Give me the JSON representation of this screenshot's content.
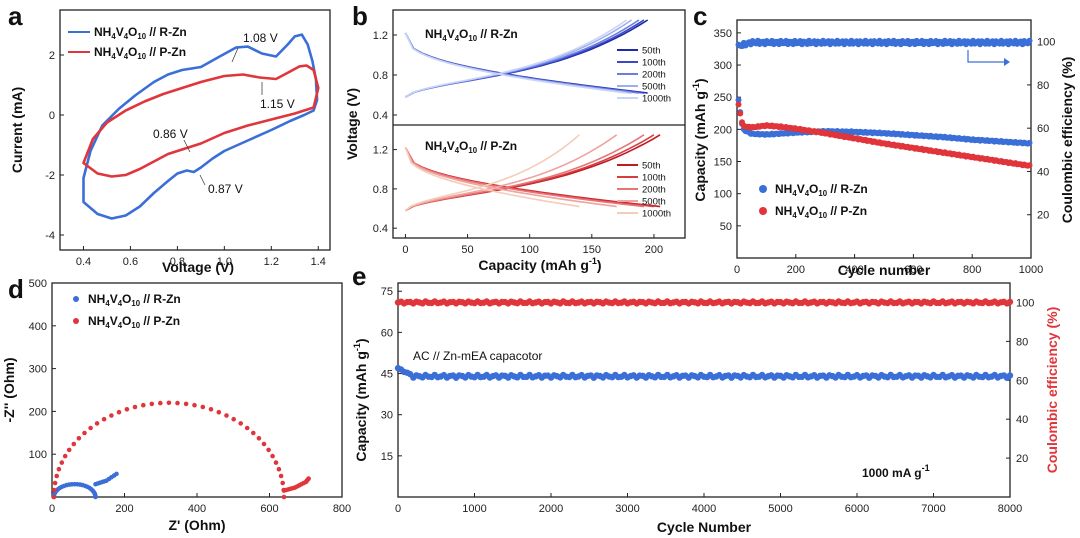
{
  "colors": {
    "blue": "#3b6fd8",
    "red": "#e0353b",
    "axis": "#222222"
  },
  "chart_data": [
    {
      "id": "a",
      "type": "line",
      "panel_label": "a",
      "xlabel": "Voltage (V)",
      "ylabel": "Current (mA)",
      "xlim": [
        0.3,
        1.45
      ],
      "ylim": [
        -4.5,
        3.5
      ],
      "xticks": [
        "0.4",
        "0.6",
        "0.8",
        "1.0",
        "1.2",
        "1.4"
      ],
      "yticks": [
        "-4",
        "-2",
        "0",
        "2"
      ],
      "legend": [
        {
          "name": "NH4V4O10 // R-Zn",
          "parts": [
            "NH",
            "4",
            "V",
            "4",
            "O",
            "10",
            "// R-Zn"
          ],
          "color": "#3b6fd8"
        },
        {
          "name": "NH4V4O10 // P-Zn",
          "parts": [
            "NH",
            "4",
            "V",
            "4",
            "O",
            "10",
            "// P-Zn"
          ],
          "color": "#e0353b"
        }
      ],
      "annotations": [
        "1.08 V",
        "1.15 V",
        "0.86 V",
        "0.87 V"
      ],
      "series": [
        {
          "name": "R-Zn",
          "color": "#3b6fd8",
          "points": [
            [
              0.4,
              -2.9
            ],
            [
              0.46,
              -3.3
            ],
            [
              0.52,
              -3.45
            ],
            [
              0.58,
              -3.35
            ],
            [
              0.64,
              -3.05
            ],
            [
              0.7,
              -2.6
            ],
            [
              0.76,
              -2.2
            ],
            [
              0.8,
              -1.95
            ],
            [
              0.84,
              -1.85
            ],
            [
              0.87,
              -1.9
            ],
            [
              0.9,
              -1.75
            ],
            [
              0.95,
              -1.45
            ],
            [
              1.0,
              -1.2
            ],
            [
              1.1,
              -0.85
            ],
            [
              1.2,
              -0.5
            ],
            [
              1.28,
              -0.2
            ],
            [
              1.34,
              0.0
            ],
            [
              1.38,
              0.15
            ],
            [
              1.395,
              0.5
            ],
            [
              1.39,
              1.2
            ],
            [
              1.375,
              1.8
            ],
            [
              1.355,
              2.35
            ],
            [
              1.33,
              2.68
            ],
            [
              1.3,
              2.62
            ],
            [
              1.27,
              2.35
            ],
            [
              1.22,
              1.95
            ],
            [
              1.16,
              2.05
            ],
            [
              1.1,
              2.28
            ],
            [
              1.05,
              2.25
            ],
            [
              0.98,
              1.95
            ],
            [
              0.9,
              1.6
            ],
            [
              0.82,
              1.5
            ],
            [
              0.76,
              1.35
            ],
            [
              0.7,
              1.1
            ],
            [
              0.62,
              0.65
            ],
            [
              0.55,
              0.2
            ],
            [
              0.48,
              -0.35
            ],
            [
              0.43,
              -1.2
            ],
            [
              0.4,
              -2.1
            ],
            [
              0.4,
              -2.9
            ]
          ]
        },
        {
          "name": "P-Zn",
          "color": "#e0353b",
          "points": [
            [
              0.4,
              -1.6
            ],
            [
              0.46,
              -1.95
            ],
            [
              0.52,
              -2.05
            ],
            [
              0.58,
              -2.0
            ],
            [
              0.64,
              -1.8
            ],
            [
              0.7,
              -1.55
            ],
            [
              0.76,
              -1.3
            ],
            [
              0.82,
              -1.15
            ],
            [
              0.86,
              -1.05
            ],
            [
              0.9,
              -0.95
            ],
            [
              1.0,
              -0.6
            ],
            [
              1.1,
              -0.35
            ],
            [
              1.2,
              -0.15
            ],
            [
              1.3,
              0.05
            ],
            [
              1.38,
              0.25
            ],
            [
              1.4,
              0.9
            ],
            [
              1.38,
              1.5
            ],
            [
              1.35,
              1.65
            ],
            [
              1.32,
              1.62
            ],
            [
              1.28,
              1.45
            ],
            [
              1.22,
              1.2
            ],
            [
              1.15,
              1.25
            ],
            [
              1.08,
              1.35
            ],
            [
              1.0,
              1.3
            ],
            [
              0.9,
              1.1
            ],
            [
              0.82,
              0.9
            ],
            [
              0.74,
              0.7
            ],
            [
              0.66,
              0.45
            ],
            [
              0.58,
              0.15
            ],
            [
              0.5,
              -0.25
            ],
            [
              0.44,
              -0.8
            ],
            [
              0.4,
              -1.6
            ]
          ]
        }
      ]
    },
    {
      "id": "b",
      "type": "line",
      "panel_label": "b",
      "xlabel": "Capacity (mAh g",
      "xlabel_sup": "-1",
      "xlabel_end": ")",
      "ylabel": "Voltage (V)",
      "xlim": [
        -10,
        225
      ],
      "ylim": [
        0.3,
        1.45
      ],
      "xticks": [
        "0",
        "50",
        "100",
        "150",
        "200"
      ],
      "yticks": [
        "0.4",
        "0.8",
        "1.2"
      ],
      "panels": [
        {
          "label_parts": [
            "NH",
            "4",
            "V",
            "4",
            "O",
            "10",
            "// R-Zn"
          ],
          "cycles": [
            "50th",
            "100th",
            "200th",
            "500th",
            "1000th"
          ],
          "colors": [
            "#1f2aa8",
            "#3848c8",
            "#6a7de0",
            "#9eafee",
            "#c9d4f6"
          ],
          "capacities": [
            195,
            192,
            188,
            182,
            178
          ],
          "voltage_window": [
            0.4,
            1.4
          ]
        },
        {
          "label_parts": [
            "NH",
            "4",
            "V",
            "4",
            "O",
            "10",
            "// P-Zn"
          ],
          "cycles": [
            "50th",
            "100th",
            "200th",
            "500th",
            "1000th"
          ],
          "colors": [
            "#c01a22",
            "#d83c40",
            "#e67575",
            "#eea3a0",
            "#f4cdb8"
          ],
          "capacities": [
            205,
            200,
            192,
            170,
            140
          ],
          "voltage_window": [
            0.4,
            1.4
          ]
        }
      ]
    },
    {
      "id": "c",
      "type": "scatter",
      "panel_label": "c",
      "xlabel": "Cycle number",
      "ylabel": "Capacity (mAh g",
      "ylabel_sup": "-1",
      "ylabel_end": ")",
      "ylabel_right": "Coulombic efficiency (%)",
      "xlim": [
        0,
        1000
      ],
      "ylim": [
        0,
        370
      ],
      "ylim_right": [
        0,
        110
      ],
      "xticks": [
        "0",
        "200",
        "400",
        "600",
        "800",
        "1000"
      ],
      "yticks": [
        "50",
        "100",
        "150",
        "200",
        "250",
        "300",
        "350"
      ],
      "yticks_right": [
        "20",
        "40",
        "60",
        "80",
        "100"
      ],
      "legend": [
        {
          "parts": [
            "NH",
            "4",
            "V",
            "4",
            "O",
            "10",
            "// R-Zn"
          ],
          "color": "#3b6fd8"
        },
        {
          "parts": [
            "NH",
            "4",
            "V",
            "4",
            "O",
            "10",
            "// P-Zn"
          ],
          "color": "#e0353b"
        }
      ],
      "series": [
        {
          "name": "R-Zn capacity",
          "color": "#3b6fd8",
          "points": [
            [
              5,
              245
            ],
            [
              20,
              200
            ],
            [
              50,
              193
            ],
            [
              100,
              192
            ],
            [
              200,
              195
            ],
            [
              300,
              197
            ],
            [
              400,
              196
            ],
            [
              500,
              194
            ],
            [
              600,
              191
            ],
            [
              700,
              188
            ],
            [
              800,
              184
            ],
            [
              900,
              181
            ],
            [
              1000,
              178
            ]
          ]
        },
        {
          "name": "P-Zn capacity",
          "color": "#e0353b",
          "points": [
            [
              5,
              238
            ],
            [
              20,
              205
            ],
            [
              50,
              203
            ],
            [
              100,
              206
            ],
            [
              150,
              204
            ],
            [
              200,
              201
            ],
            [
              300,
              194
            ],
            [
              400,
              186
            ],
            [
              500,
              178
            ],
            [
              600,
              171
            ],
            [
              700,
              164
            ],
            [
              800,
              157
            ],
            [
              900,
              150
            ],
            [
              1000,
              143
            ]
          ]
        },
        {
          "name": "R-Zn CE",
          "color": "#3b6fd8",
          "axis": "right",
          "points": [
            [
              5,
              98
            ],
            [
              50,
              99.6
            ],
            [
              1000,
              99.6
            ]
          ]
        }
      ]
    },
    {
      "id": "d",
      "type": "scatter",
      "panel_label": "d",
      "xlabel": "Z' (Ohm)",
      "ylabel": "-Z'' (Ohm)",
      "xlim": [
        0,
        800
      ],
      "ylim": [
        0,
        500
      ],
      "xticks": [
        "0",
        "200",
        "400",
        "600",
        "800"
      ],
      "yticks": [
        "100",
        "200",
        "300",
        "400",
        "500"
      ],
      "legend": [
        {
          "parts": [
            "NH",
            "4",
            "V",
            "4",
            "O",
            "10",
            "// R-Zn"
          ],
          "color": "#3b6fd8"
        },
        {
          "parts": [
            "NH",
            "4",
            "V",
            "4",
            "O",
            "10",
            "// P-Zn"
          ],
          "color": "#e0353b"
        }
      ],
      "series": [
        {
          "name": "R-Zn",
          "color": "#3b6fd8",
          "semicircle": {
            "start": 5,
            "end": 120,
            "height": 30
          },
          "tail": [
            [
              120,
              30
            ],
            [
              150,
              38
            ],
            [
              185,
              58
            ]
          ]
        },
        {
          "name": "P-Zn",
          "color": "#e0353b",
          "semicircle": {
            "start": 5,
            "end": 640,
            "height": 220
          },
          "tail": [
            [
              640,
              15
            ],
            [
              670,
              22
            ],
            [
              700,
              35
            ],
            [
              710,
              45
            ]
          ]
        }
      ]
    },
    {
      "id": "e",
      "type": "scatter",
      "panel_label": "e",
      "xlabel": "Cycle Number",
      "ylabel": "Capacity (mAh g",
      "ylabel_sup": "-1",
      "ylabel_end": ")",
      "ylabel_right": "Coulombic efficiency (%)",
      "xlim": [
        0,
        8000
      ],
      "ylim": [
        0,
        78
      ],
      "ylim_right": [
        0,
        110
      ],
      "xticks": [
        "0",
        "1000",
        "2000",
        "3000",
        "4000",
        "5000",
        "6000",
        "7000",
        "8000"
      ],
      "yticks": [
        "15",
        "30",
        "45",
        "60",
        "75"
      ],
      "yticks_right": [
        "20",
        "40",
        "60",
        "80",
        "100"
      ],
      "annotation": "AC // Zn-mEA capacotor",
      "rate_label": "1000 mA g",
      "rate_sup": "-1",
      "series": [
        {
          "name": "Capacity",
          "color": "#3b6fd8",
          "values_range": [
            43.5,
            44.5
          ],
          "start": 47
        },
        {
          "name": "Coulombic efficiency",
          "color": "#e0353b",
          "axis": "right",
          "values_range": [
            99.5,
            100.5
          ]
        }
      ]
    }
  ]
}
